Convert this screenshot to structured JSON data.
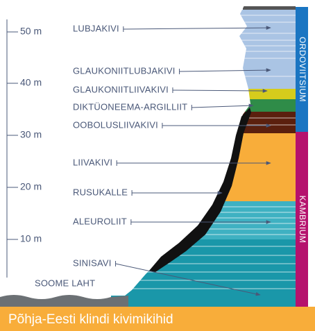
{
  "title": "Põhja-Eesti klindi kivimikihid",
  "scale": [
    "50 m",
    "40 m",
    "30 m",
    "20 m",
    "10 m"
  ],
  "periods": [
    "ORDOVIITSIUM",
    "KAMBRIUM"
  ],
  "layers": [
    "LUBJAKIVI",
    "GLAUKONIITLUBJAKIVI",
    "GLAUKONIITLIIVAKIVI",
    "DIKTÜONEEMA-ARGILLIIT",
    "OOBOLUSLIIVAKIVI",
    "LIIVAKIVI",
    "RUSUKALLE",
    "ALEUROLIIT",
    "SINISAVI"
  ],
  "sea": "SOOME LAHT"
}
